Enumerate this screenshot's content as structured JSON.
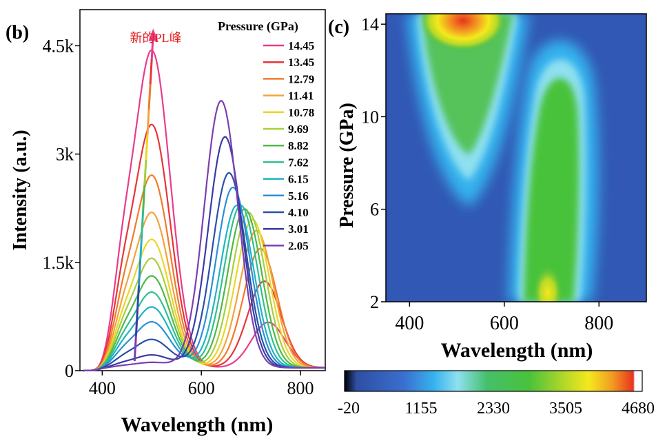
{
  "chart_data": [
    {
      "panel": "(b)",
      "type": "line",
      "xlabel": "Wavelength (nm)",
      "ylabel": "Intensity (a.u.)",
      "xlim": [
        355,
        475
      ],
      "xlim_note": "",
      "x_range": [
        355,
        850
      ],
      "y_range": [
        0,
        5000
      ],
      "xticks": [
        400,
        600,
        800
      ],
      "xtick_labels": [
        "400",
        "600",
        "800"
      ],
      "yticks": [
        0,
        1500,
        3000,
        4500
      ],
      "ytick_labels": [
        "0",
        "1.5k",
        "3k",
        "4.5k"
      ],
      "annotation": "新的PL峰",
      "legend_title": "Pressure (GPa)",
      "legend_position": "top-right",
      "series": [
        {
          "name": "14.45",
          "color": "#e83c8c",
          "peak1": 4700,
          "peak2": 630
        },
        {
          "name": "13.45",
          "color": "#e8343a",
          "peak1": 3600,
          "peak2": 1200
        },
        {
          "name": "12.79",
          "color": "#f07a2a",
          "peak1": 2850,
          "peak2": 1650
        },
        {
          "name": "11.41",
          "color": "#f4a23a",
          "peak1": 2300,
          "peak2": 1900
        },
        {
          "name": "10.78",
          "color": "#e9d728",
          "peak1": 1900,
          "peak2": 2050
        },
        {
          "name": "9.69",
          "color": "#a6cf3c",
          "peak1": 1620,
          "peak2": 2150
        },
        {
          "name": "8.82",
          "color": "#4fb848",
          "peak1": 1360,
          "peak2": 2200
        },
        {
          "name": "7.62",
          "color": "#2fbf8f",
          "peak1": 1120,
          "peak2": 2250
        },
        {
          "name": "6.15",
          "color": "#1fb3c2",
          "peak1": 900,
          "peak2": 2250
        },
        {
          "name": "5.16",
          "color": "#2a8fd6",
          "peak1": 680,
          "peak2": 2500
        },
        {
          "name": "4.10",
          "color": "#2a4fa8",
          "peak1": 420,
          "peak2": 2700
        },
        {
          "name": "3.01",
          "color": "#3a3aa6",
          "peak1": 190,
          "peak2": 3200
        },
        {
          "name": "2.05",
          "color": "#7a3fb0",
          "peak1": 80,
          "peak2": 3700
        }
      ]
    },
    {
      "panel": "(c)",
      "type": "heatmap",
      "xlabel": "Wavelength (nm)",
      "ylabel": "Pressure (GPa)",
      "x_range": [
        350,
        900
      ],
      "y_range": [
        2,
        14.45
      ],
      "xticks": [
        400,
        600,
        800
      ],
      "xtick_labels": [
        "400",
        "600",
        "800"
      ],
      "yticks": [
        2,
        6,
        10,
        14
      ],
      "ytick_labels": [
        "2",
        "6",
        "10",
        "14"
      ],
      "colorbar": {
        "min": -20,
        "max": 4680,
        "ticks": [
          "-20",
          "1155",
          "2330",
          "3505",
          "4680"
        ],
        "colors": [
          "#000000",
          "#2f4ea3",
          "#3a6fd0",
          "#36b2ee",
          "#8fe0f0",
          "#45bf6a",
          "#49c23a",
          "#b6d829",
          "#f4e91c",
          "#f39b22",
          "#e8331f",
          "#ffffff"
        ]
      },
      "values_note": "intensity map: two emission bands (low-pressure band near 650-700 nm, high-pressure band near 480-500 nm)"
    }
  ]
}
